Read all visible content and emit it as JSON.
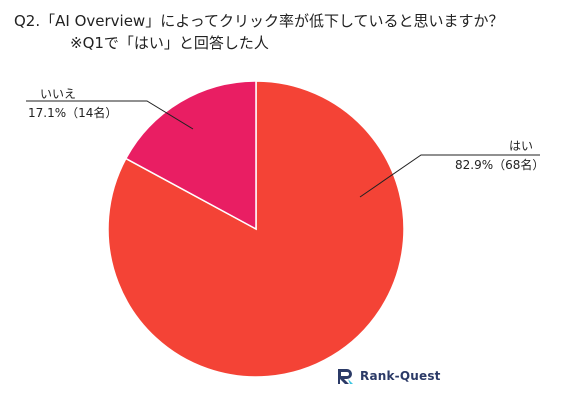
{
  "title": {
    "line1": "Q2.「AI Overview」によってクリック率が低下していると思いますか？",
    "line2": "※Q1で「はい」と回答した人"
  },
  "chart_data": {
    "type": "pie",
    "title": "Q2.「AI Overview」によってクリック率が低下していると思いますか？",
    "subtitle": "※Q1で「はい」と回答した人",
    "slices": [
      {
        "name": "はい",
        "percent": 82.9,
        "count": 68,
        "value_label": "82.9%（68名）",
        "color": "#f44336"
      },
      {
        "name": "いいえ",
        "percent": 17.1,
        "count": 14,
        "value_label": "17.1%（14名）",
        "color": "#e91e63"
      }
    ],
    "start": "12 o'clock",
    "direction": "clockwise"
  },
  "logo": {
    "text": "Rank-Quest",
    "color": "#2b3a67",
    "icon": "rank-quest-logo-icon"
  }
}
